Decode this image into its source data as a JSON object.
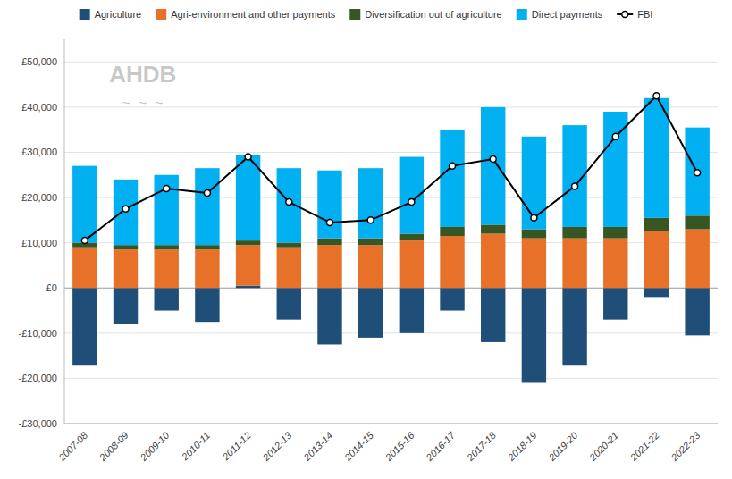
{
  "chart_data": {
    "type": "bar",
    "stacked": true,
    "grid": true,
    "legend": "top",
    "annotations": [
      "AHDB",
      "~  ~  ~"
    ],
    "categories": [
      "2007-08",
      "2008-09",
      "2009-10",
      "2010-11",
      "2011-12",
      "2012-13",
      "2013-14",
      "2014-15",
      "2015-16",
      "2016-17",
      "2017-18",
      "2018-19",
      "2019-20",
      "2020-21",
      "2021-22",
      "2022-23"
    ],
    "series": [
      {
        "name": "Agriculture",
        "type": "bar",
        "color": "#1F4E79",
        "values": [
          -17000,
          -8000,
          -5000,
          -7500,
          500,
          -7000,
          -12500,
          -11000,
          -10000,
          -5000,
          -12000,
          -21000,
          -17000,
          -7000,
          -2000,
          -10500
        ]
      },
      {
        "name": "Agri-environment and other payments",
        "type": "bar",
        "color": "#E8712A",
        "values": [
          9000,
          8500,
          8500,
          8500,
          9000,
          9000,
          9500,
          9500,
          10500,
          11500,
          12000,
          11000,
          11000,
          11000,
          12500,
          13000
        ]
      },
      {
        "name": "Diversification out of agriculture",
        "type": "bar",
        "color": "#375623",
        "values": [
          1000,
          1000,
          1000,
          1000,
          1000,
          1000,
          1500,
          1500,
          1500,
          2000,
          2000,
          2000,
          2500,
          2500,
          3000,
          3000
        ]
      },
      {
        "name": "Direct payments",
        "type": "bar",
        "color": "#00B0F0",
        "values": [
          17000,
          14500,
          15500,
          17000,
          19000,
          16500,
          15000,
          15500,
          17000,
          21500,
          26000,
          20500,
          22500,
          25500,
          26500,
          19500
        ]
      },
      {
        "name": "FBI",
        "type": "line",
        "color": "#000000",
        "marker": "circle",
        "values": [
          10500,
          17500,
          22000,
          21000,
          29000,
          19000,
          14500,
          15000,
          19000,
          27000,
          28500,
          15500,
          22500,
          33500,
          42500,
          25500
        ]
      }
    ],
    "ylim": [
      -30000,
      55000
    ],
    "yticks": [
      {
        "value": -30000,
        "label": "-£30,000"
      },
      {
        "value": -20000,
        "label": "-£20,000"
      },
      {
        "value": -10000,
        "label": "-£10,000"
      },
      {
        "value": 0,
        "label": "£0"
      },
      {
        "value": 10000,
        "label": "£10,000"
      },
      {
        "value": 20000,
        "label": "£20,000"
      },
      {
        "value": 30000,
        "label": "£30,000"
      },
      {
        "value": 40000,
        "label": "£40,000"
      },
      {
        "value": 50000,
        "label": "£50,000"
      }
    ]
  }
}
